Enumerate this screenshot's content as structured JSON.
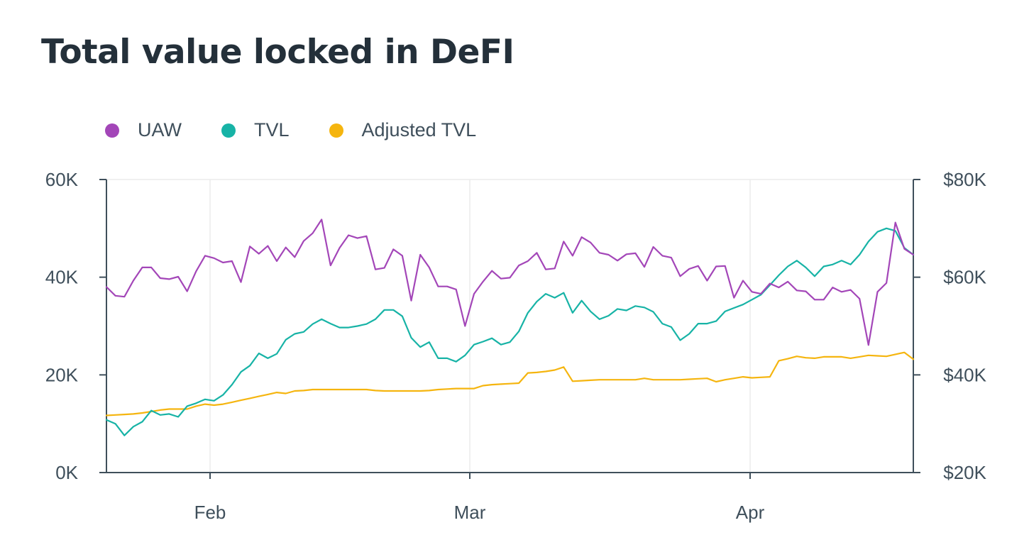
{
  "title": "Total value locked in DeFI",
  "legend": [
    {
      "label": "UAW",
      "color": "#a346b8"
    },
    {
      "label": "TVL",
      "color": "#17b3a6"
    },
    {
      "label": "Adjusted TVL",
      "color": "#f5b50f"
    }
  ],
  "chart_data": {
    "type": "line",
    "x_ticks": [
      "Feb",
      "Mar",
      "Apr"
    ],
    "left_axis": {
      "ticks": [
        "0K",
        "20K",
        "40K",
        "60K"
      ],
      "range": [
        0,
        60000
      ]
    },
    "right_axis": {
      "ticks": [
        "$20K",
        "$40K",
        "$60K",
        "$80K"
      ],
      "range": [
        20000,
        80000
      ]
    },
    "grid": "vertical",
    "series": [
      {
        "name": "UAW",
        "color": "#a346b8",
        "axis": "left",
        "values": [
          38000,
          36200,
          36000,
          39300,
          42000,
          42000,
          39800,
          39600,
          40100,
          37100,
          41200,
          44400,
          43900,
          43000,
          43300,
          39000,
          46300,
          44800,
          46400,
          43300,
          46100,
          44100,
          47400,
          49000,
          51800,
          42400,
          46000,
          48600,
          48000,
          48400,
          41600,
          41900,
          45700,
          44400,
          35200,
          44600,
          42000,
          38100,
          38100,
          37500,
          30000,
          36600,
          39100,
          41300,
          39700,
          39900,
          42400,
          43300,
          45000,
          41600,
          41800,
          47300,
          44400,
          48200,
          47100,
          45000,
          44600,
          43400,
          44700,
          44900,
          42100,
          46200,
          44400,
          44000,
          40200,
          41700,
          42300,
          39300,
          42200,
          42300,
          35800,
          39300,
          37000,
          36600,
          38700,
          37900,
          39100,
          37300,
          37100,
          35400,
          35400,
          37900,
          37000,
          37400,
          35600,
          26100,
          37000,
          38800,
          51200,
          45800,
          44600
        ]
      },
      {
        "name": "TVL",
        "color": "#17b3a6",
        "axis": "right",
        "values": [
          30800,
          30000,
          27600,
          29400,
          30400,
          32700,
          31800,
          32000,
          31400,
          33600,
          34200,
          35000,
          34700,
          35900,
          38000,
          40600,
          41900,
          44400,
          43400,
          44300,
          47200,
          48400,
          48800,
          50400,
          51400,
          50500,
          49700,
          49700,
          50000,
          50400,
          51400,
          53300,
          53300,
          52000,
          47600,
          45700,
          46700,
          43400,
          43400,
          42700,
          44000,
          46200,
          46800,
          47500,
          46200,
          46700,
          48900,
          52700,
          55000,
          56600,
          55800,
          56800,
          52700,
          55200,
          53000,
          51400,
          52100,
          53500,
          53200,
          54100,
          53800,
          52900,
          50500,
          49800,
          47100,
          48400,
          50500,
          50500,
          51000,
          53000,
          53700,
          54400,
          55400,
          56400,
          58400,
          60400,
          62200,
          63400,
          62000,
          60200,
          62200,
          62600,
          63400,
          62600,
          64600,
          67300,
          69300,
          70000,
          69500,
          66000,
          64600
        ]
      },
      {
        "name": "Adjusted TVL",
        "color": "#f5b50f",
        "axis": "right",
        "values": [
          31700,
          31800,
          31900,
          32000,
          32200,
          32500,
          32800,
          33000,
          33000,
          33000,
          33600,
          34000,
          33800,
          34000,
          34400,
          34800,
          35200,
          35600,
          36000,
          36400,
          36200,
          36700,
          36800,
          37000,
          37000,
          37000,
          37000,
          37000,
          37000,
          37000,
          36800,
          36700,
          36700,
          36700,
          36700,
          36700,
          36800,
          37000,
          37100,
          37200,
          37200,
          37200,
          37800,
          38000,
          38100,
          38200,
          38300,
          40400,
          40500,
          40700,
          41000,
          41600,
          38700,
          38800,
          38900,
          39000,
          39000,
          39000,
          39000,
          39000,
          39300,
          39000,
          39000,
          39000,
          39000,
          39100,
          39200,
          39300,
          38600,
          39000,
          39300,
          39600,
          39400,
          39500,
          39600,
          42900,
          43300,
          43800,
          43500,
          43400,
          43700,
          43700,
          43700,
          43400,
          43700,
          44000,
          43900,
          43800,
          44200,
          44600,
          43200
        ]
      }
    ]
  }
}
